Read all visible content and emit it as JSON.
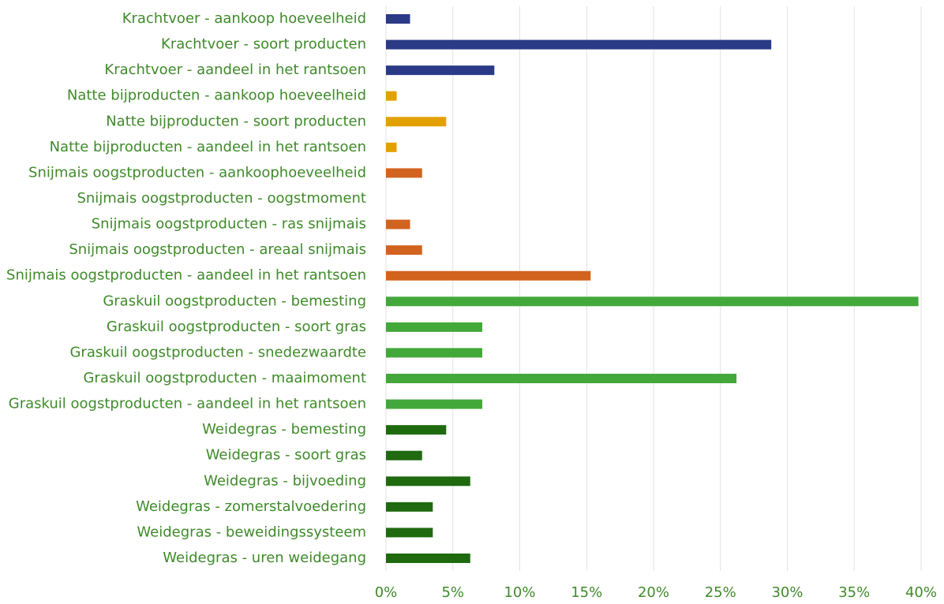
{
  "chart_data": {
    "type": "bar",
    "orientation": "horizontal",
    "categories": [
      "Krachtvoer - aankoop hoeveelheid",
      "Krachtvoer - soort producten",
      "Krachtvoer - aandeel in het rantsoen",
      "Natte bijproducten - aankoop hoeveelheid",
      "Natte bijproducten - soort producten",
      "Natte bijproducten - aandeel in het rantsoen",
      "Snijmais oogstproducten - aankoophoeveelheid",
      "Snijmais oogstproducten - oogstmoment",
      "Snijmais oogstproducten - ras snijmais",
      "Snijmais oogstproducten - areaal snijmais",
      "Snijmais oogstproducten - aandeel in het rantsoen",
      "Graskuil oogstproducten - bemesting",
      "Graskuil oogstproducten - soort gras",
      "Graskuil oogstproducten - snedezwaardte",
      "Graskuil oogstproducten - maaimoment",
      "Graskuil oogstproducten - aandeel in het rantsoen",
      "Weidegras - bemesting",
      "Weidegras - soort gras",
      "Weidegras - bijvoeding",
      "Weidegras - zomerstalvoedering",
      "Weidegras - beweidingssysteem",
      "Weidegras - uren weidegang"
    ],
    "values": [
      1.8,
      28.8,
      8.1,
      0.8,
      4.5,
      0.8,
      2.7,
      0,
      1.8,
      2.7,
      15.3,
      39.8,
      7.2,
      7.2,
      26.2,
      7.2,
      4.5,
      2.7,
      6.3,
      3.5,
      3.5,
      6.3
    ],
    "colors": [
      "#2b3a87",
      "#2b3a87",
      "#2b3a87",
      "#e3a100",
      "#e3a100",
      "#e3a100",
      "#d2631f",
      "#d2631f",
      "#d2631f",
      "#d2631f",
      "#d2631f",
      "#43a83a",
      "#43a83a",
      "#43a83a",
      "#43a83a",
      "#43a83a",
      "#1f6a0f",
      "#1f6a0f",
      "#1f6a0f",
      "#1f6a0f",
      "#1f6a0f",
      "#1f6a0f"
    ],
    "xlim": [
      0,
      40
    ],
    "xticks": [
      {
        "value": 0,
        "label": "0%"
      },
      {
        "value": 5,
        "label": "5%"
      },
      {
        "value": 10,
        "label": "10%"
      },
      {
        "value": 15,
        "label": "15%"
      },
      {
        "value": 20,
        "label": "20%"
      },
      {
        "value": 25,
        "label": "25%"
      },
      {
        "value": 30,
        "label": "30%"
      },
      {
        "value": 35,
        "label": "35%"
      },
      {
        "value": 40,
        "label": "40%"
      }
    ],
    "grid": true
  }
}
